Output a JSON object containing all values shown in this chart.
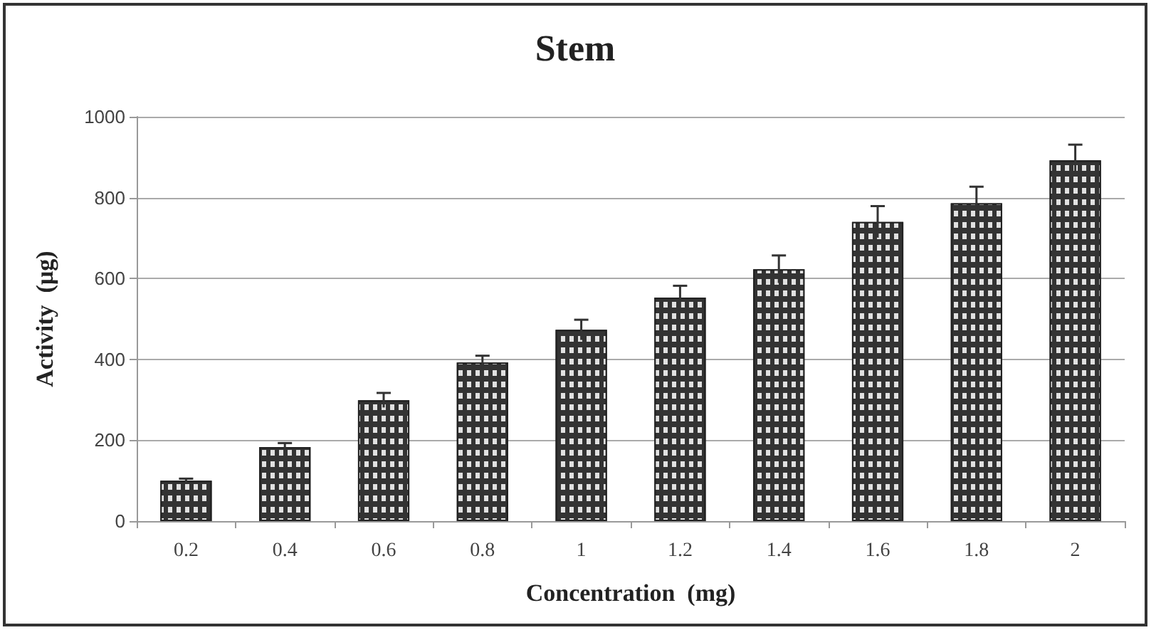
{
  "chart_data": {
    "type": "bar",
    "title": "Stem",
    "xlabel": "Concentration  (mg)",
    "ylabel": "Activity  (µg)",
    "categories": [
      "0.2",
      "0.4",
      "0.6",
      "0.8",
      "1",
      "1.2",
      "1.4",
      "1.6",
      "1.8",
      "2"
    ],
    "values": [
      100,
      183,
      299,
      392,
      473,
      553,
      623,
      740,
      786,
      892
    ],
    "errors": [
      5,
      10,
      18,
      17,
      25,
      29,
      34,
      39,
      41,
      39
    ],
    "color": "#333333",
    "ylim": [
      0,
      1000
    ],
    "yticks": [
      0,
      200,
      400,
      600,
      800,
      1000
    ],
    "grid": "y"
  }
}
